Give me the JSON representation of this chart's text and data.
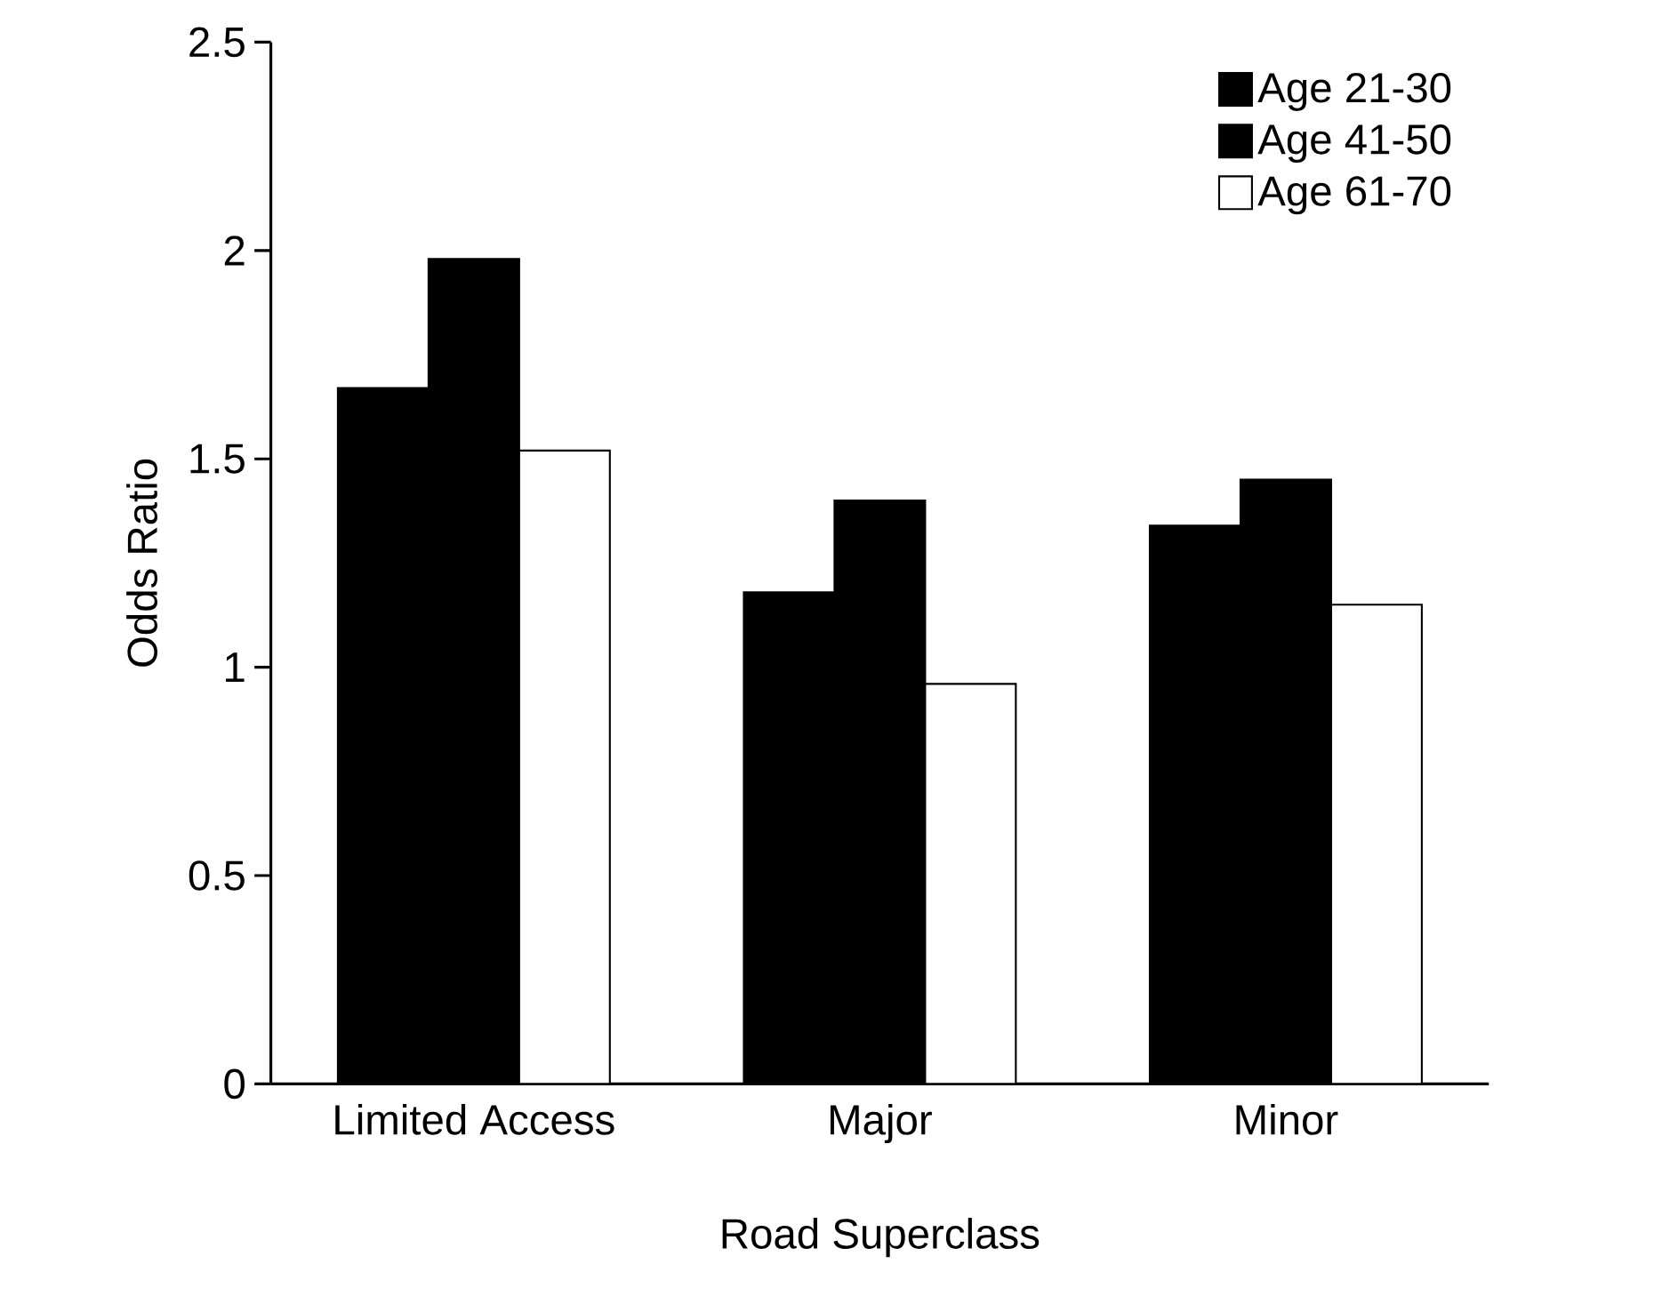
{
  "chart_data": {
    "type": "bar",
    "xlabel": "Road Superclass",
    "ylabel": "Odds Ratio",
    "categories": [
      "Limited Access",
      "Major",
      "Minor"
    ],
    "series": [
      {
        "name": "Age 21-30",
        "color": "#000000",
        "values": [
          1.67,
          1.18,
          1.34
        ]
      },
      {
        "name": "Age 41-50",
        "color": "#000000",
        "values": [
          1.98,
          1.4,
          1.45
        ]
      },
      {
        "name": "Age 61-70",
        "color": "#ffffff",
        "values": [
          1.52,
          0.96,
          1.15
        ]
      }
    ],
    "ylim": [
      0,
      2.5
    ],
    "yticks": [
      0,
      0.5,
      1,
      1.5,
      2,
      2.5
    ],
    "legend": "top right"
  }
}
